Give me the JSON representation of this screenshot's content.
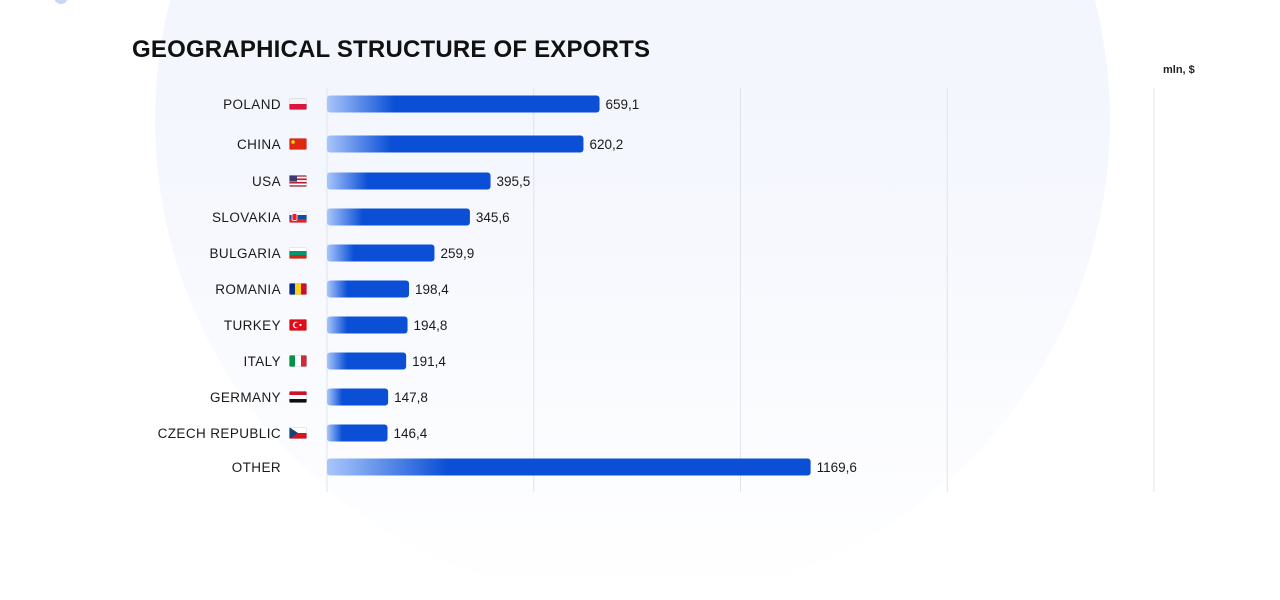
{
  "chart_data": {
    "type": "bar",
    "orientation": "horizontal",
    "title": "GEOGRAPHICAL STRUCTURE OF EXPORTS",
    "unit": "mln, $",
    "xlim": [
      0,
      2000
    ],
    "grid": true,
    "bar_color": "#0a4fd6",
    "bar_gradient_start": "#a9c6fb",
    "categories": [
      "POLAND",
      "CHINA",
      "USA",
      "SLOVAKIA",
      "BULGARIA",
      "ROMANIA",
      "TURKEY",
      "ITALY",
      "GERMANY",
      "CZECH REPUBLIC",
      "OTHER"
    ],
    "values": [
      659.1,
      620.2,
      395.5,
      345.6,
      259.9,
      198.4,
      194.8,
      191.4,
      147.8,
      146.4,
      1169.6
    ],
    "value_labels": [
      "659,1",
      "620,2",
      "395,5",
      "345,6",
      "259,9",
      "198,4",
      "194,8",
      "191,4",
      "147,8",
      "146,4",
      "1169,6"
    ],
    "flags": [
      "poland-flag-icon",
      "china-flag-icon",
      "usa-flag-icon",
      "slovakia-flag-icon",
      "bulgaria-flag-icon",
      "romania-flag-icon",
      "turkey-flag-icon",
      "italy-flag-icon",
      "germany-flag-icon",
      "czech-republic-flag-icon",
      ""
    ]
  }
}
